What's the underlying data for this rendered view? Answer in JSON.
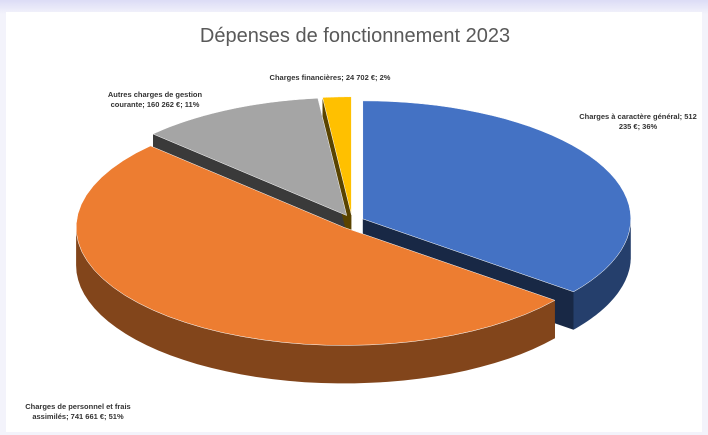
{
  "chart_data": {
    "type": "pie3d",
    "title": "Dépenses de fonctionnement 2023",
    "values": [
      512235,
      741661,
      160262,
      24702
    ],
    "value_labels": [
      "Charges à caractère général; 512 235 €; 36%",
      "Charges de personnel et frais assimilés; 741 661 €; 51%",
      "Autres charges de gestion courante; 160 262 €; 11%",
      "Charges financières; 24 702 €; 2%"
    ],
    "colors": [
      "#4472c4",
      "#ed7d31",
      "#a5a5a5",
      "#ffc000"
    ]
  }
}
